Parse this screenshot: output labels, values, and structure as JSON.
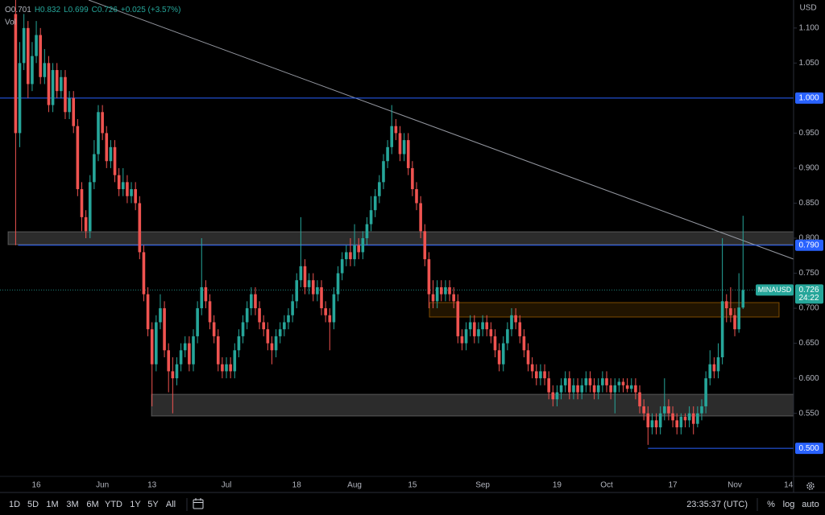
{
  "chart_data": {
    "type": "candlestick",
    "readout": [
      "O0.701",
      "H0.832",
      "L0.699",
      "C0.726",
      "+0.025 (+3.57%)"
    ],
    "volume_label": "Vol",
    "currency": "USD",
    "symbol": "MINAUSD",
    "countdown": "24:22",
    "last_price": {
      "value": 0.726,
      "label": "0.726"
    },
    "up_color": "#26a69a",
    "down_color": "#ef5350",
    "ylim": [
      0.46,
      1.14
    ],
    "yticks": [
      {
        "value": 1.1,
        "label": "1.100"
      },
      {
        "value": 1.05,
        "label": "1.050"
      },
      {
        "value": 0.95,
        "label": "0.950"
      },
      {
        "value": 0.9,
        "label": "0.900"
      },
      {
        "value": 0.85,
        "label": "0.850"
      },
      {
        "value": 0.8,
        "label": "0.800"
      },
      {
        "value": 0.75,
        "label": "0.750"
      },
      {
        "value": 0.7,
        "label": "0.700"
      },
      {
        "value": 0.65,
        "label": "0.650"
      },
      {
        "value": 0.6,
        "label": "0.600"
      },
      {
        "value": 0.55,
        "label": "0.550"
      }
    ],
    "levels": [
      {
        "value": 1.0,
        "label": "1.000",
        "color": "#2962ff"
      },
      {
        "value": 0.79,
        "label": "0.790",
        "color": "#2962ff"
      },
      {
        "value": 0.5,
        "label": "0.500",
        "color": "#2962ff"
      }
    ],
    "categories": [
      null,
      null,
      null,
      null,
      null,
      "16",
      null,
      null,
      null,
      null,
      null,
      null,
      null,
      null,
      null,
      null,
      null,
      null,
      null,
      null,
      null,
      "Jun",
      null,
      null,
      null,
      null,
      null,
      null,
      null,
      null,
      null,
      null,
      null,
      "13",
      null,
      null,
      null,
      null,
      null,
      null,
      null,
      null,
      null,
      null,
      null,
      null,
      null,
      null,
      null,
      null,
      null,
      "Jul",
      null,
      null,
      null,
      null,
      null,
      null,
      null,
      null,
      null,
      null,
      null,
      null,
      null,
      null,
      null,
      null,
      "18",
      null,
      null,
      null,
      null,
      null,
      null,
      null,
      null,
      null,
      null,
      null,
      null,
      null,
      "Aug",
      null,
      null,
      null,
      null,
      null,
      null,
      null,
      null,
      null,
      null,
      null,
      null,
      null,
      "15",
      null,
      null,
      null,
      null,
      null,
      null,
      null,
      null,
      null,
      null,
      null,
      null,
      null,
      null,
      null,
      null,
      "Sep",
      null,
      null,
      null,
      null,
      null,
      null,
      null,
      null,
      null,
      null,
      null,
      null,
      null,
      null,
      null,
      null,
      null,
      "19",
      null,
      null,
      null,
      null,
      null,
      null,
      null,
      null,
      null,
      null,
      null,
      "Oct",
      null,
      null,
      null,
      null,
      null,
      null,
      null,
      null,
      null,
      null,
      null,
      null,
      null,
      null,
      null,
      "17",
      null,
      null,
      null,
      null,
      null,
      null,
      null,
      null,
      null,
      null,
      null,
      null,
      null,
      null,
      "Nov",
      null,
      null,
      null,
      null,
      null,
      null,
      null,
      null,
      null,
      null,
      null,
      null,
      "14"
    ],
    "open": [
      1.12,
      0.95,
      1.05,
      1.1,
      1.02,
      1.06,
      1.09,
      1.03,
      1.05,
      0.99,
      1.04,
      1.01,
      1.03,
      0.98,
      1.0,
      0.96,
      0.87,
      0.83,
      0.81,
      0.88,
      0.92,
      0.98,
      0.95,
      0.91,
      0.93,
      0.89,
      0.87,
      0.88,
      0.86,
      0.87,
      0.85,
      0.78,
      0.72,
      0.67,
      0.62,
      0.68,
      0.7,
      0.64,
      0.61,
      0.6,
      0.62,
      0.64,
      0.65,
      0.62,
      0.66,
      0.7,
      0.73,
      0.71,
      0.68,
      0.66,
      0.62,
      0.61,
      0.62,
      0.61,
      0.64,
      0.66,
      0.68,
      0.7,
      0.72,
      0.7,
      0.68,
      0.67,
      0.65,
      0.64,
      0.66,
      0.67,
      0.68,
      0.69,
      0.71,
      0.74,
      0.76,
      0.73,
      0.74,
      0.72,
      0.73,
      0.7,
      0.69,
      0.68,
      0.72,
      0.75,
      0.77,
      0.78,
      0.77,
      0.79,
      0.78,
      0.8,
      0.82,
      0.84,
      0.86,
      0.88,
      0.91,
      0.93,
      0.96,
      0.95,
      0.92,
      0.94,
      0.9,
      0.87,
      0.85,
      0.81,
      0.77,
      0.72,
      0.71,
      0.73,
      0.72,
      0.73,
      0.72,
      0.71,
      0.66,
      0.65,
      0.67,
      0.68,
      0.66,
      0.67,
      0.68,
      0.67,
      0.66,
      0.64,
      0.62,
      0.65,
      0.67,
      0.69,
      0.68,
      0.66,
      0.64,
      0.62,
      0.61,
      0.6,
      0.61,
      0.6,
      0.58,
      0.57,
      0.58,
      0.59,
      0.6,
      0.58,
      0.59,
      0.58,
      0.59,
      0.6,
      0.59,
      0.58,
      0.59,
      0.6,
      0.59,
      0.58,
      0.59,
      0.595,
      0.59,
      0.585,
      0.59,
      0.58,
      0.56,
      0.55,
      0.53,
      0.54,
      0.53,
      0.55,
      0.56,
      0.55,
      0.54,
      0.53,
      0.545,
      0.54,
      0.55,
      0.535,
      0.55,
      0.56,
      0.6,
      0.62,
      0.61,
      0.63,
      0.71,
      0.7,
      0.69,
      0.67,
      0.701,
      null,
      null,
      null,
      null,
      null,
      null,
      null,
      null,
      null,
      null,
      null
    ],
    "high": [
      1.14,
      1.08,
      1.12,
      1.11,
      1.08,
      1.11,
      1.1,
      1.07,
      1.06,
      1.05,
      1.05,
      1.04,
      1.04,
      1.01,
      1.01,
      0.97,
      0.88,
      0.84,
      0.89,
      0.94,
      0.99,
      0.99,
      0.96,
      0.94,
      0.94,
      0.9,
      0.9,
      0.89,
      0.88,
      0.88,
      0.86,
      0.79,
      0.73,
      0.68,
      0.69,
      0.72,
      0.71,
      0.65,
      0.63,
      0.63,
      0.65,
      0.66,
      0.66,
      0.67,
      0.71,
      0.8,
      0.74,
      0.72,
      0.69,
      0.67,
      0.63,
      0.63,
      0.63,
      0.65,
      0.67,
      0.69,
      0.71,
      0.73,
      0.73,
      0.71,
      0.69,
      0.68,
      0.66,
      0.67,
      0.68,
      0.69,
      0.7,
      0.72,
      0.75,
      0.83,
      0.77,
      0.75,
      0.75,
      0.74,
      0.74,
      0.71,
      0.7,
      0.73,
      0.76,
      0.78,
      0.79,
      0.8,
      0.82,
      0.8,
      0.81,
      0.83,
      0.86,
      0.87,
      0.89,
      0.92,
      0.94,
      0.99,
      0.97,
      0.96,
      0.95,
      0.95,
      0.91,
      0.88,
      0.86,
      0.82,
      0.78,
      0.74,
      0.74,
      0.74,
      0.74,
      0.74,
      0.73,
      0.72,
      0.67,
      0.68,
      0.69,
      0.69,
      0.68,
      0.69,
      0.69,
      0.68,
      0.67,
      0.65,
      0.66,
      0.68,
      0.7,
      0.7,
      0.69,
      0.67,
      0.65,
      0.63,
      0.62,
      0.62,
      0.62,
      0.61,
      0.59,
      0.59,
      0.6,
      0.61,
      0.61,
      0.6,
      0.6,
      0.6,
      0.61,
      0.61,
      0.6,
      0.6,
      0.61,
      0.61,
      0.6,
      0.6,
      0.6,
      0.6,
      0.6,
      0.6,
      0.6,
      0.59,
      0.57,
      0.56,
      0.55,
      0.55,
      0.56,
      0.6,
      0.57,
      0.56,
      0.55,
      0.55,
      0.55,
      0.56,
      0.56,
      0.56,
      0.57,
      0.61,
      0.64,
      0.63,
      0.65,
      0.8,
      0.72,
      0.73,
      0.7,
      0.75,
      0.832,
      null,
      null,
      null,
      null,
      null,
      null,
      null,
      null,
      null,
      null,
      null
    ],
    "low": [
      0.79,
      0.93,
      1.04,
      1.0,
      1.01,
      1.05,
      1.02,
      1.02,
      0.98,
      0.98,
      1.0,
      1.0,
      0.97,
      0.97,
      0.95,
      0.86,
      0.81,
      0.8,
      0.8,
      0.87,
      0.91,
      0.94,
      0.9,
      0.9,
      0.88,
      0.86,
      0.86,
      0.85,
      0.85,
      0.84,
      0.77,
      0.71,
      0.66,
      0.56,
      0.61,
      0.67,
      0.63,
      0.58,
      0.55,
      0.59,
      0.61,
      0.63,
      0.61,
      0.61,
      0.65,
      0.69,
      0.7,
      0.67,
      0.65,
      0.61,
      0.6,
      0.6,
      0.6,
      0.6,
      0.63,
      0.65,
      0.67,
      0.69,
      0.69,
      0.67,
      0.66,
      0.64,
      0.62,
      0.63,
      0.65,
      0.66,
      0.67,
      0.68,
      0.7,
      0.73,
      0.72,
      0.72,
      0.71,
      0.71,
      0.69,
      0.68,
      0.64,
      0.67,
      0.71,
      0.74,
      0.76,
      0.76,
      0.76,
      0.77,
      0.77,
      0.79,
      0.81,
      0.83,
      0.85,
      0.87,
      0.9,
      0.92,
      0.94,
      0.91,
      0.91,
      0.89,
      0.86,
      0.84,
      0.8,
      0.76,
      0.7,
      0.7,
      0.7,
      0.71,
      0.71,
      0.71,
      0.7,
      0.65,
      0.64,
      0.64,
      0.66,
      0.65,
      0.65,
      0.66,
      0.66,
      0.65,
      0.63,
      0.61,
      0.61,
      0.64,
      0.66,
      0.67,
      0.65,
      0.63,
      0.61,
      0.6,
      0.59,
      0.59,
      0.59,
      0.57,
      0.56,
      0.56,
      0.57,
      0.58,
      0.57,
      0.57,
      0.57,
      0.57,
      0.58,
      0.58,
      0.57,
      0.57,
      0.58,
      0.58,
      0.57,
      0.55,
      0.58,
      0.58,
      0.58,
      0.58,
      0.57,
      0.55,
      0.54,
      0.505,
      0.52,
      0.52,
      0.52,
      0.54,
      0.54,
      0.53,
      0.52,
      0.52,
      0.53,
      0.53,
      0.52,
      0.53,
      0.54,
      0.55,
      0.59,
      0.6,
      0.6,
      0.62,
      0.68,
      0.68,
      0.66,
      0.665,
      0.699,
      null,
      null,
      null,
      null,
      null,
      null,
      null,
      null,
      null,
      null,
      null
    ],
    "close": [
      0.95,
      1.05,
      1.1,
      1.02,
      1.06,
      1.09,
      1.03,
      1.05,
      0.99,
      1.04,
      1.01,
      1.03,
      0.98,
      1.0,
      0.96,
      0.87,
      0.83,
      0.81,
      0.88,
      0.92,
      0.98,
      0.95,
      0.91,
      0.93,
      0.89,
      0.87,
      0.88,
      0.86,
      0.87,
      0.85,
      0.78,
      0.72,
      0.67,
      0.62,
      0.68,
      0.7,
      0.64,
      0.61,
      0.6,
      0.62,
      0.64,
      0.65,
      0.62,
      0.66,
      0.7,
      0.73,
      0.71,
      0.68,
      0.66,
      0.62,
      0.61,
      0.62,
      0.61,
      0.64,
      0.66,
      0.68,
      0.7,
      0.72,
      0.7,
      0.68,
      0.67,
      0.65,
      0.64,
      0.66,
      0.67,
      0.68,
      0.69,
      0.71,
      0.74,
      0.76,
      0.73,
      0.74,
      0.72,
      0.73,
      0.7,
      0.69,
      0.68,
      0.72,
      0.75,
      0.77,
      0.78,
      0.77,
      0.79,
      0.78,
      0.8,
      0.82,
      0.84,
      0.86,
      0.88,
      0.91,
      0.93,
      0.96,
      0.95,
      0.92,
      0.94,
      0.9,
      0.87,
      0.85,
      0.81,
      0.77,
      0.72,
      0.71,
      0.73,
      0.72,
      0.73,
      0.72,
      0.71,
      0.66,
      0.65,
      0.67,
      0.68,
      0.66,
      0.67,
      0.68,
      0.67,
      0.66,
      0.64,
      0.62,
      0.65,
      0.67,
      0.69,
      0.68,
      0.66,
      0.64,
      0.62,
      0.61,
      0.6,
      0.61,
      0.6,
      0.58,
      0.57,
      0.58,
      0.59,
      0.6,
      0.58,
      0.59,
      0.58,
      0.59,
      0.6,
      0.59,
      0.58,
      0.59,
      0.6,
      0.59,
      0.58,
      0.59,
      0.595,
      0.59,
      0.585,
      0.59,
      0.58,
      0.56,
      0.55,
      0.53,
      0.54,
      0.53,
      0.55,
      0.56,
      0.55,
      0.54,
      0.53,
      0.545,
      0.54,
      0.55,
      0.535,
      0.55,
      0.56,
      0.6,
      0.62,
      0.61,
      0.63,
      0.71,
      0.7,
      0.69,
      0.67,
      0.701,
      0.726,
      null,
      null,
      null,
      null,
      null,
      null,
      null,
      null,
      null,
      null,
      null
    ],
    "toolbar": {
      "ranges": [
        "1D",
        "5D",
        "1M",
        "3M",
        "6M",
        "YTD",
        "1Y",
        "5Y",
        "All"
      ],
      "clock": "23:35:37 (UTC)",
      "options": [
        "%",
        "log",
        "auto"
      ]
    }
  }
}
